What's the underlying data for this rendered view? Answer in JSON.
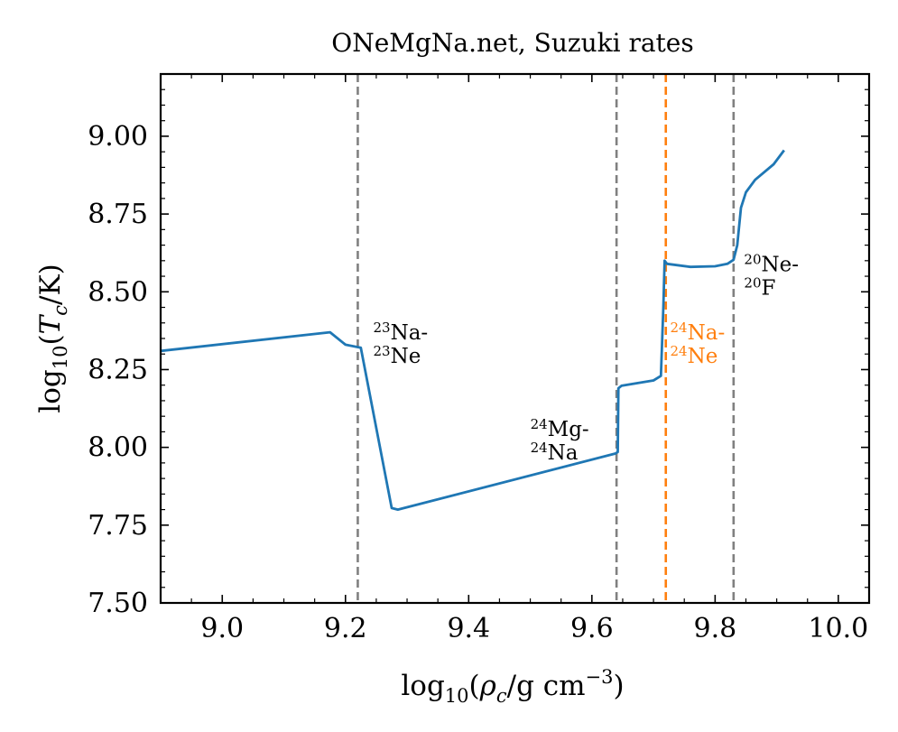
{
  "chart_data": {
    "type": "line",
    "title": "ONeMgNa.net, Suzuki rates",
    "xlabel": {
      "base": "log",
      "sub": "10",
      "open": "(",
      "var": "ρ",
      "varsub": "c",
      "unit": "/g cm",
      "exp": "−3",
      "close": ")"
    },
    "ylabel": {
      "base": "log",
      "sub": "10",
      "open": "(",
      "var": "T",
      "varsub": "c",
      "unit": "/K",
      "close": ")"
    },
    "xlim": [
      8.9,
      10.05
    ],
    "ylim": [
      7.5,
      9.2
    ],
    "xticks": [
      9.0,
      9.2,
      9.4,
      9.6,
      9.8,
      10.0
    ],
    "xtick_labels": [
      "9.0",
      "9.2",
      "9.4",
      "9.6",
      "9.8",
      "10.0"
    ],
    "yticks": [
      7.5,
      7.75,
      8.0,
      8.25,
      8.5,
      8.75,
      9.0
    ],
    "ytick_labels": [
      "7.50",
      "7.75",
      "8.00",
      "8.25",
      "8.50",
      "8.75",
      "9.00"
    ],
    "grid": false,
    "series": [
      {
        "color": "#1f77b4",
        "points": [
          [
            8.9,
            8.31
          ],
          [
            9.175,
            8.37
          ],
          [
            9.2,
            8.33
          ],
          [
            9.225,
            8.32
          ],
          [
            9.275,
            7.805
          ],
          [
            9.285,
            7.8
          ],
          [
            9.638,
            7.98
          ],
          [
            9.642,
            7.985
          ],
          [
            9.643,
            8.19
          ],
          [
            9.648,
            8.198
          ],
          [
            9.7,
            8.215
          ],
          [
            9.712,
            8.23
          ],
          [
            9.716,
            8.45
          ],
          [
            9.718,
            8.6
          ],
          [
            9.722,
            8.59
          ],
          [
            9.76,
            8.58
          ],
          [
            9.8,
            8.582
          ],
          [
            9.82,
            8.59
          ],
          [
            9.83,
            8.603
          ],
          [
            9.836,
            8.65
          ],
          [
            9.842,
            8.77
          ],
          [
            9.85,
            8.82
          ],
          [
            9.865,
            8.86
          ],
          [
            9.895,
            8.91
          ],
          [
            9.912,
            8.955
          ]
        ]
      }
    ],
    "vlines": [
      {
        "x": 9.22,
        "color": "#808080"
      },
      {
        "x": 9.64,
        "color": "#808080"
      },
      {
        "x": 9.72,
        "color": "#ff7f0e"
      },
      {
        "x": 9.83,
        "color": "#808080"
      }
    ],
    "annotations": [
      {
        "line1_sup": "23",
        "line1_text": "Na-",
        "line2_sup": "23",
        "line2_text": "Ne",
        "x": 9.245,
        "y": 8.37,
        "color": "#000000"
      },
      {
        "line1_sup": "24",
        "line1_text": "Mg-",
        "line2_sup": "24",
        "line2_text": "Na",
        "x": 9.5,
        "y": 8.06,
        "color": "#000000"
      },
      {
        "line1_sup": "24",
        "line1_text": "Na-",
        "line2_sup": "24",
        "line2_text": "Ne",
        "x": 9.727,
        "y": 8.37,
        "color": "#ff7f0e"
      },
      {
        "line1_sup": "20",
        "line1_text": "Ne-",
        "line2_sup": "20",
        "line2_text": "F",
        "x": 9.847,
        "y": 8.59,
        "color": "#000000"
      }
    ]
  }
}
